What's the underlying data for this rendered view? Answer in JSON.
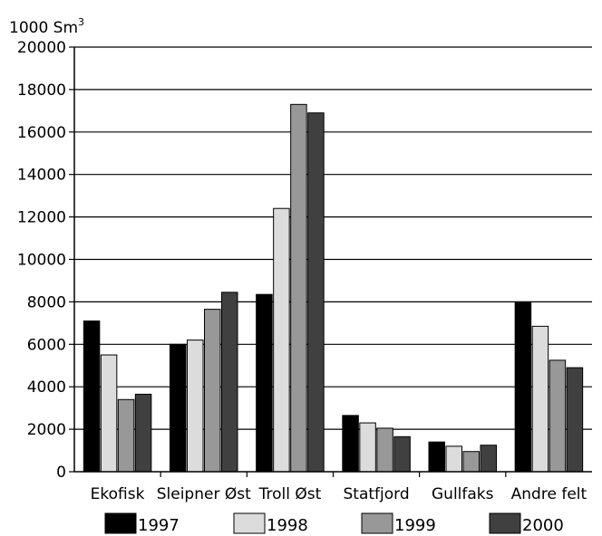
{
  "chart_data": {
    "type": "bar",
    "ylabel": "1000 Sm",
    "ylabel_superscript": "3",
    "ylim": [
      0,
      20000
    ],
    "yticks": [
      "0",
      "2000",
      "4000",
      "6000",
      "8000",
      "10000",
      "12000",
      "14000",
      "16000",
      "18000",
      "20000"
    ],
    "categories": [
      "Ekofisk",
      "Sleipner Øst",
      "Troll Øst",
      "Statfjord",
      "Gullfaks",
      "Andre felt"
    ],
    "series": [
      {
        "name": "1997",
        "color": "#000000",
        "values": [
          7100,
          6000,
          8350,
          2650,
          1400,
          8000
        ]
      },
      {
        "name": "1998",
        "color": "#dcdcdc",
        "values": [
          5500,
          6200,
          12400,
          2300,
          1200,
          6850
        ]
      },
      {
        "name": "1999",
        "color": "#989898",
        "values": [
          3400,
          7650,
          17300,
          2050,
          950,
          5250
        ]
      },
      {
        "name": "2000",
        "color": "#404040",
        "values": [
          3650,
          8450,
          16900,
          1650,
          1250,
          4900
        ]
      }
    ],
    "grid": true,
    "legend_position": "bottom"
  }
}
